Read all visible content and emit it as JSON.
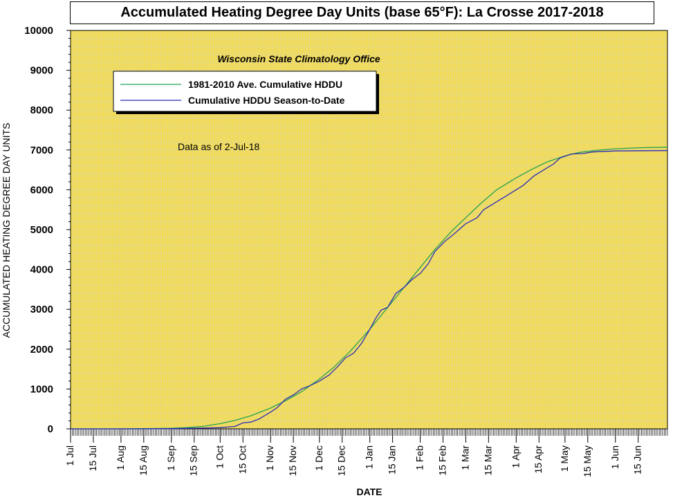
{
  "chart_data": {
    "type": "line",
    "title": "Accumulated Heating Degree Day Units (base 65°F): La Crosse 2017-2018",
    "subtitle": "Wisconsin State Climatology Office",
    "annotation": "Data as of 2-Jul-18",
    "xlabel": "DATE",
    "ylabel": "ACCUMULATED HEATING DEGREE DAY UNITS",
    "ylim": [
      0,
      10000
    ],
    "yticks": [
      0,
      1000,
      2000,
      3000,
      4000,
      5000,
      6000,
      7000,
      8000,
      9000,
      10000
    ],
    "xlim": [
      "2017-07-01",
      "2018-07-03"
    ],
    "x_tick_labels": [
      "1 Jul",
      "15 Jul",
      "1 Aug",
      "15 Aug",
      "1 Sep",
      "15 Sep",
      "1 Oct",
      "15 Oct",
      "1 Nov",
      "15 Nov",
      "1 Dec",
      "15 Dec",
      "1 Jan",
      "15 Jan",
      "1 Feb",
      "15 Feb",
      "1 Mar",
      "15 Mar",
      "1 Apr",
      "15 Apr",
      "1 May",
      "15 May",
      "1 Jun",
      "15 Jun"
    ],
    "x_tick_dates": [
      "2017-07-01",
      "2017-07-15",
      "2017-08-01",
      "2017-08-15",
      "2017-09-01",
      "2017-09-15",
      "2017-10-01",
      "2017-10-15",
      "2017-11-01",
      "2017-11-15",
      "2017-12-01",
      "2017-12-15",
      "2018-01-01",
      "2018-01-15",
      "2018-02-01",
      "2018-02-15",
      "2018-03-01",
      "2018-03-15",
      "2018-04-01",
      "2018-04-15",
      "2018-05-01",
      "2018-05-15",
      "2018-06-01",
      "2018-06-15"
    ],
    "grid": true,
    "legend_position": "top-left",
    "background_color": "#f8de4a",
    "grid_color": "#d6d2a8",
    "series": [
      {
        "name": "1981-2010 Ave. Cumulative HDDU",
        "color": "#22a050",
        "points": [
          [
            "2017-07-01",
            0
          ],
          [
            "2017-08-01",
            2
          ],
          [
            "2017-08-20",
            8
          ],
          [
            "2017-09-01",
            15
          ],
          [
            "2017-09-10",
            30
          ],
          [
            "2017-09-20",
            60
          ],
          [
            "2017-10-01",
            130
          ],
          [
            "2017-10-10",
            210
          ],
          [
            "2017-10-20",
            330
          ],
          [
            "2017-11-01",
            520
          ],
          [
            "2017-11-10",
            700
          ],
          [
            "2017-11-20",
            930
          ],
          [
            "2017-12-01",
            1250
          ],
          [
            "2017-12-10",
            1550
          ],
          [
            "2017-12-20",
            1950
          ],
          [
            "2018-01-01",
            2500
          ],
          [
            "2018-01-10",
            2950
          ],
          [
            "2018-01-20",
            3450
          ],
          [
            "2018-02-01",
            4050
          ],
          [
            "2018-02-10",
            4500
          ],
          [
            "2018-02-20",
            4950
          ],
          [
            "2018-03-01",
            5300
          ],
          [
            "2018-03-10",
            5650
          ],
          [
            "2018-03-20",
            6000
          ],
          [
            "2018-04-01",
            6300
          ],
          [
            "2018-04-10",
            6500
          ],
          [
            "2018-04-20",
            6700
          ],
          [
            "2018-05-01",
            6850
          ],
          [
            "2018-05-10",
            6940
          ],
          [
            "2018-05-20",
            6990
          ],
          [
            "2018-06-01",
            7030
          ],
          [
            "2018-06-15",
            7055
          ],
          [
            "2018-07-03",
            7070
          ]
        ]
      },
      {
        "name": "Cumulative HDDU Season-to-Date",
        "color": "#2a2ab8",
        "points": [
          [
            "2017-07-01",
            0
          ],
          [
            "2017-08-15",
            0
          ],
          [
            "2017-09-01",
            5
          ],
          [
            "2017-09-15",
            15
          ],
          [
            "2017-10-01",
            30
          ],
          [
            "2017-10-10",
            60
          ],
          [
            "2017-10-15",
            150
          ],
          [
            "2017-10-20",
            170
          ],
          [
            "2017-10-25",
            250
          ],
          [
            "2017-11-01",
            420
          ],
          [
            "2017-11-05",
            530
          ],
          [
            "2017-11-10",
            740
          ],
          [
            "2017-11-15",
            850
          ],
          [
            "2017-11-20",
            1000
          ],
          [
            "2017-11-25",
            1080
          ],
          [
            "2017-12-01",
            1200
          ],
          [
            "2017-12-07",
            1350
          ],
          [
            "2017-12-12",
            1550
          ],
          [
            "2017-12-17",
            1780
          ],
          [
            "2017-12-22",
            1900
          ],
          [
            "2017-12-27",
            2150
          ],
          [
            "2018-01-01",
            2500
          ],
          [
            "2018-01-05",
            2800
          ],
          [
            "2018-01-08",
            2980
          ],
          [
            "2018-01-12",
            3050
          ],
          [
            "2018-01-17",
            3400
          ],
          [
            "2018-01-22",
            3550
          ],
          [
            "2018-01-27",
            3750
          ],
          [
            "2018-02-01",
            3900
          ],
          [
            "2018-02-06",
            4150
          ],
          [
            "2018-02-10",
            4450
          ],
          [
            "2018-02-16",
            4700
          ],
          [
            "2018-02-22",
            4900
          ],
          [
            "2018-03-01",
            5150
          ],
          [
            "2018-03-08",
            5300
          ],
          [
            "2018-03-12",
            5500
          ],
          [
            "2018-03-20",
            5700
          ],
          [
            "2018-03-28",
            5900
          ],
          [
            "2018-04-05",
            6100
          ],
          [
            "2018-04-12",
            6350
          ],
          [
            "2018-04-18",
            6500
          ],
          [
            "2018-04-24",
            6650
          ],
          [
            "2018-04-28",
            6800
          ],
          [
            "2018-05-05",
            6900
          ],
          [
            "2018-05-12",
            6910
          ],
          [
            "2018-05-18",
            6950
          ],
          [
            "2018-06-01",
            6975
          ],
          [
            "2018-07-03",
            6985
          ]
        ]
      }
    ]
  }
}
